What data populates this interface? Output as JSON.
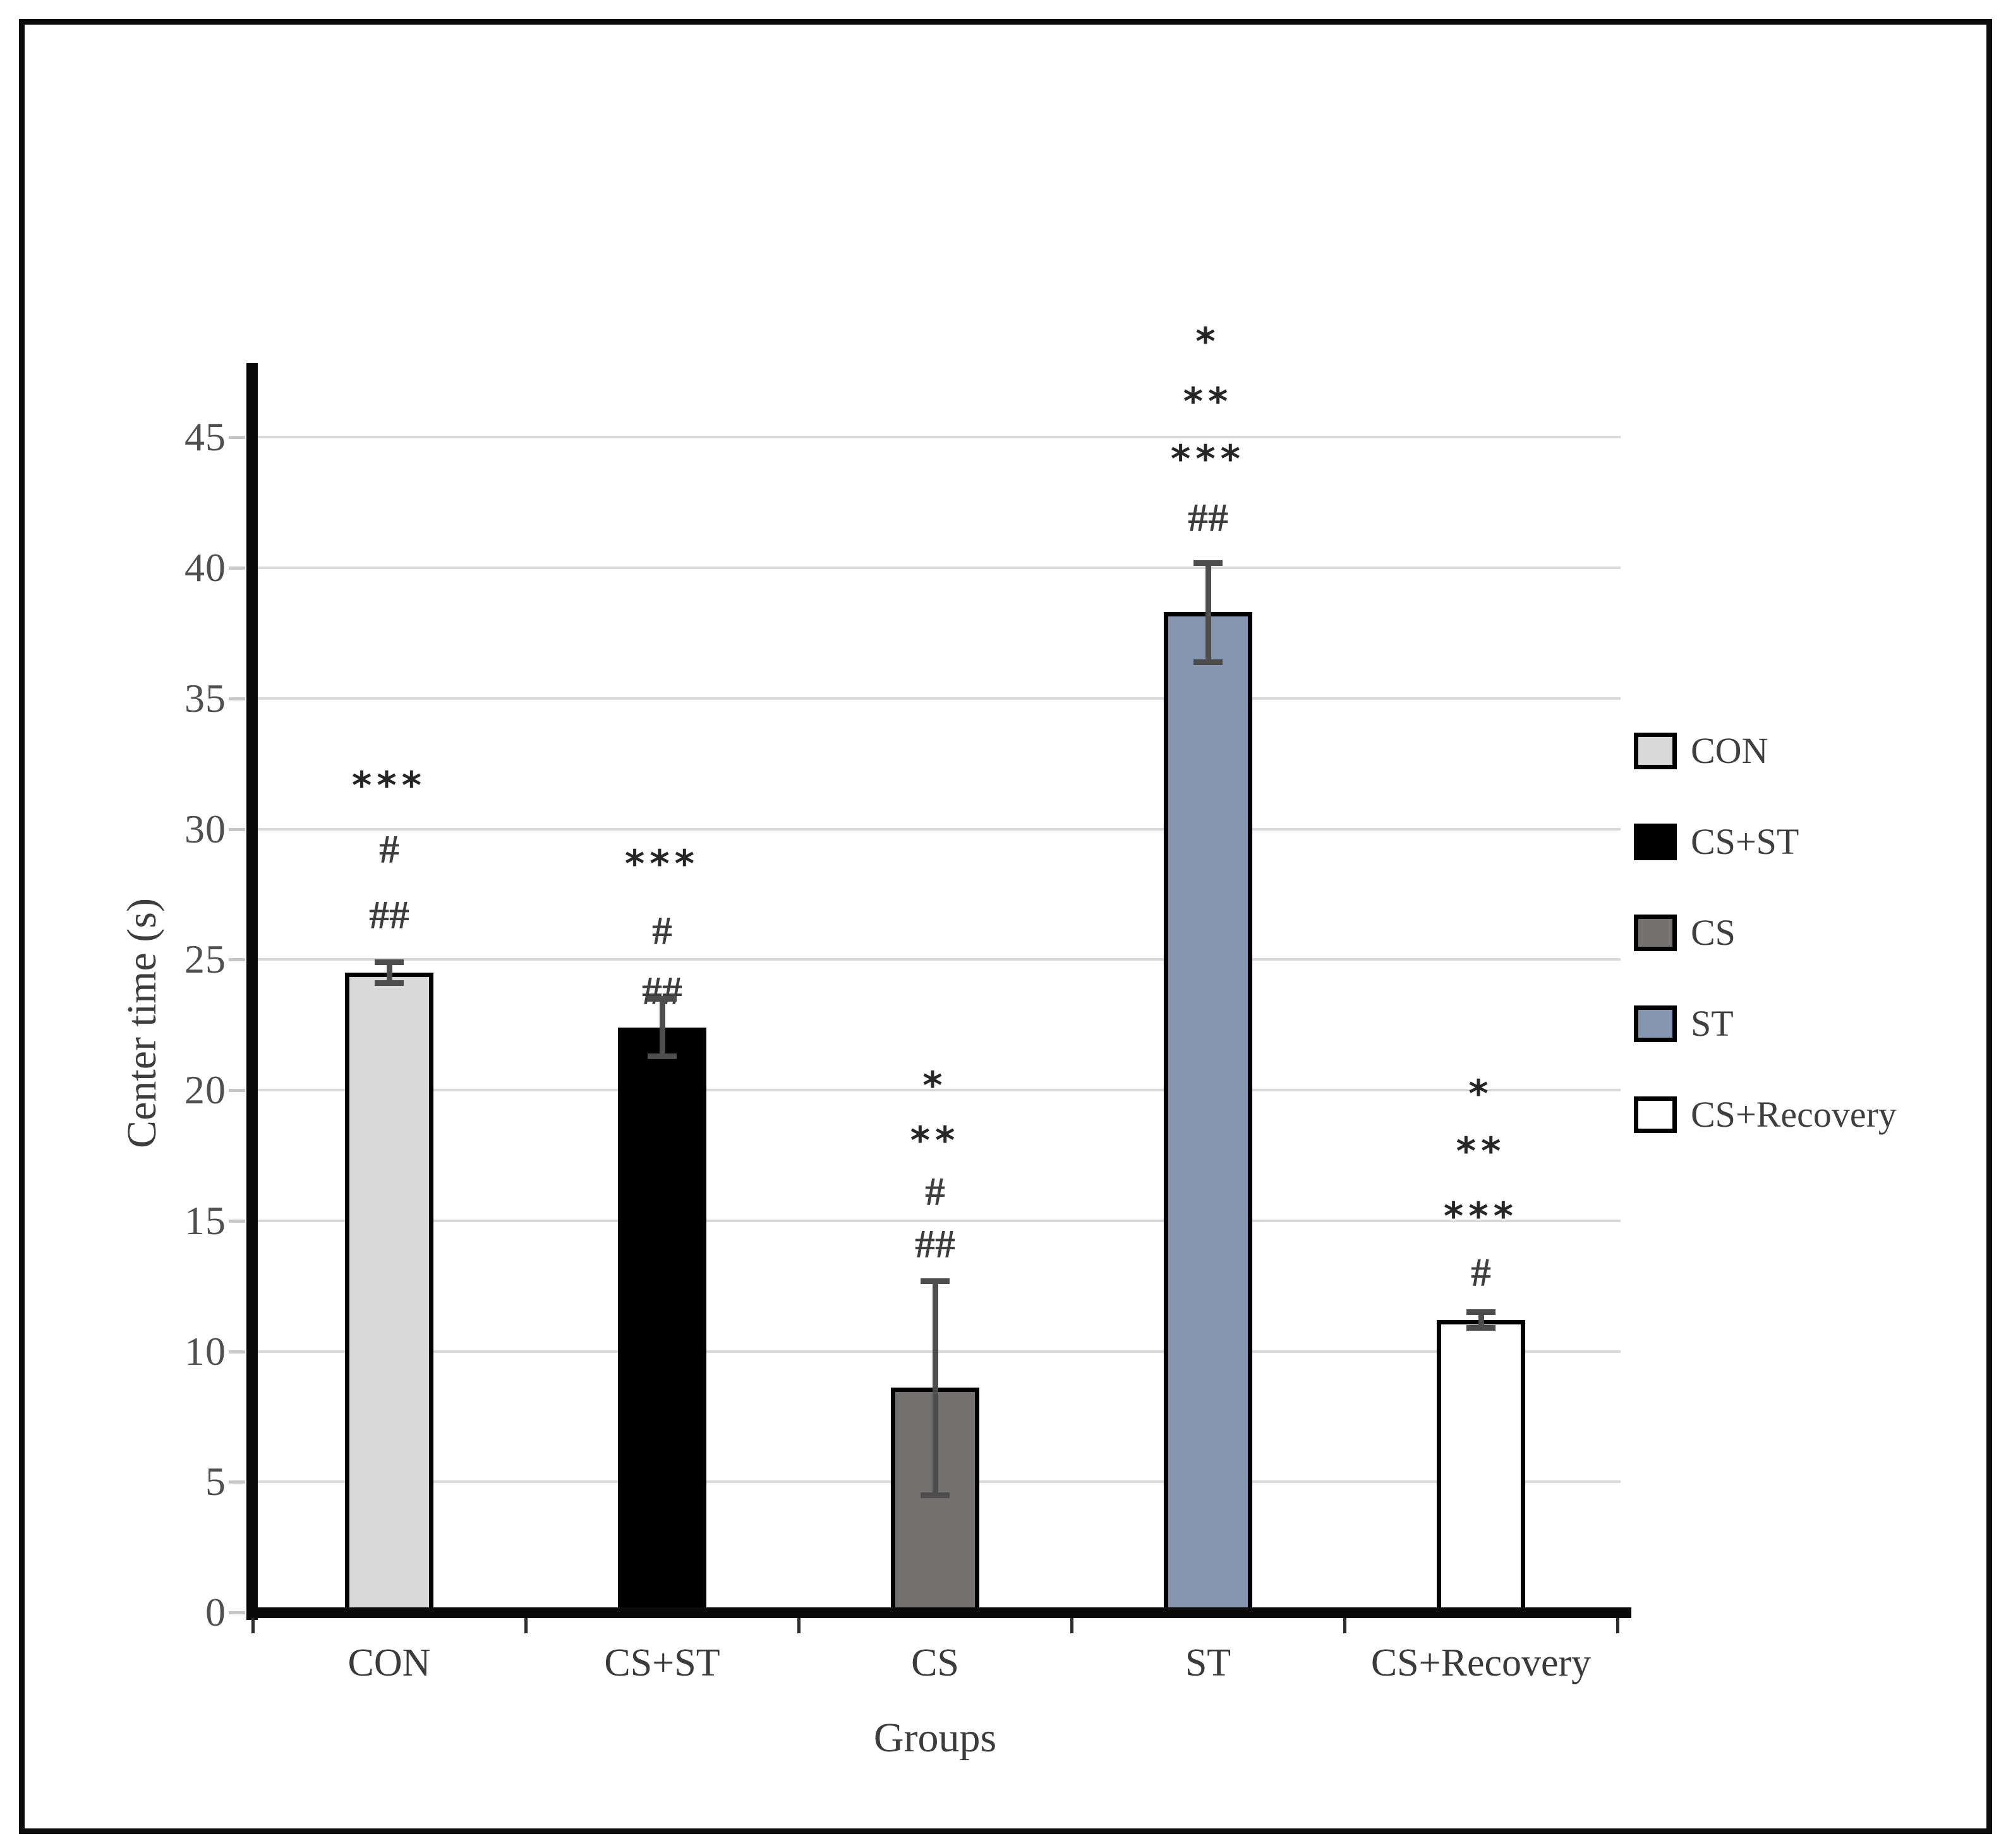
{
  "chart_data": {
    "type": "bar",
    "title": "",
    "xlabel": "Groups",
    "ylabel": "Center time (s)",
    "categories": [
      "CON",
      "CS+ST",
      "CS",
      "ST",
      "CS+Recovery"
    ],
    "values": [
      24.5,
      22.4,
      8.6,
      38.3,
      11.2
    ],
    "errors": [
      0.4,
      1.1,
      4.1,
      1.9,
      0.3
    ],
    "bar_fill_colors": [
      "#d9d9d9",
      "#000000",
      "#767171",
      "#8496b0",
      "#ffffff"
    ],
    "bar_border_color": "#000000",
    "ylim": [
      0,
      47
    ],
    "ytick_values": [
      0,
      5,
      10,
      15,
      20,
      25,
      30,
      35,
      40,
      45
    ],
    "grid": true,
    "gridline_color": "#d9d9d9",
    "error_bar_color": "#4d4d4d",
    "axis_color": "#0a0a0a",
    "tick_text_color": "#4f4f4f",
    "legend_position": "right",
    "legend_entries": [
      {
        "label": "CON",
        "color": "#d9d9d9"
      },
      {
        "label": "CS+ST",
        "color": "#000000"
      },
      {
        "label": "CS",
        "color": "#767171"
      },
      {
        "label": "ST",
        "color": "#8496b0"
      },
      {
        "label": "CS+Recovery",
        "color": "#ffffff"
      }
    ],
    "significance_annotations": [
      {
        "category": "CON",
        "symbols": [
          {
            "text": "***",
            "y": 32.0
          },
          {
            "text": "#",
            "y": 29.3
          },
          {
            "text": "##",
            "y": 26.8
          }
        ]
      },
      {
        "category": "CS+ST",
        "symbols": [
          {
            "text": "***",
            "y": 29.0
          },
          {
            "text": "#",
            "y": 26.2
          },
          {
            "text": "##",
            "y": 23.9
          }
        ]
      },
      {
        "category": "CS",
        "symbols": [
          {
            "text": "*",
            "y": 20.5
          },
          {
            "text": "**",
            "y": 18.4
          },
          {
            "text": "#",
            "y": 16.2
          },
          {
            "text": "##",
            "y": 14.2
          }
        ]
      },
      {
        "category": "ST",
        "symbols": [
          {
            "text": "*",
            "y": 49.0
          },
          {
            "text": "**",
            "y": 46.7
          },
          {
            "text": "***",
            "y": 44.5
          },
          {
            "text": "##",
            "y": 42.0
          }
        ]
      },
      {
        "category": "CS+Recovery",
        "symbols": [
          {
            "text": "*",
            "y": 20.2
          },
          {
            "text": "**",
            "y": 18.0
          },
          {
            "text": "***",
            "y": 15.5
          },
          {
            "text": "#",
            "y": 13.1
          }
        ]
      }
    ]
  }
}
